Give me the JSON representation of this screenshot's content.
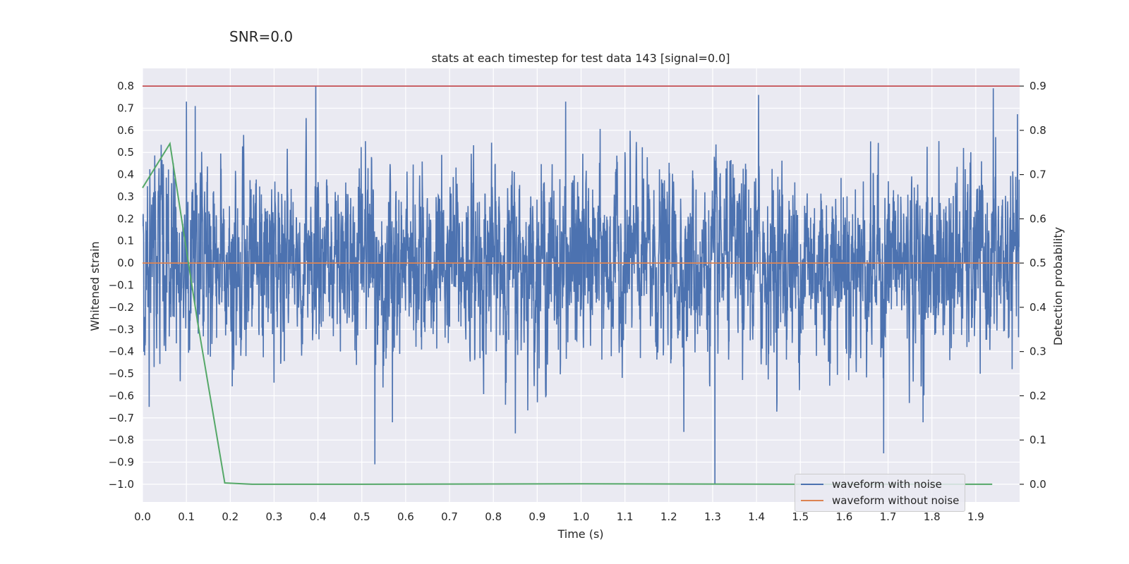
{
  "suptitle": "SNR=0.0",
  "colors": {
    "background": "#eaeaf2",
    "grid": "#ffffff",
    "noisy": "#4c72b0",
    "clean": "#dd8452",
    "probability": "#55a868",
    "threshold": "#c44e52"
  },
  "legend": {
    "position": "lower right",
    "items": [
      {
        "label": "waveform with noise",
        "color": "#4c72b0"
      },
      {
        "label": "waveform without noise",
        "color": "#dd8452"
      }
    ]
  },
  "chart_data": {
    "type": "line",
    "title": "stats at each timestep for test data 143 [signal=0.0]",
    "xlabel": "Time (s)",
    "ylabel": "Whitened strain",
    "y2label": "Detection probability",
    "xlim": [
      0.0,
      2.0
    ],
    "ylim": [
      -1.08,
      0.88
    ],
    "y2lim": [
      -0.04,
      0.94
    ],
    "xticks": [
      "0.0",
      "0.1",
      "0.2",
      "0.3",
      "0.4",
      "0.5",
      "0.6",
      "0.7",
      "0.8",
      "0.9",
      "1.0",
      "1.1",
      "1.2",
      "1.3",
      "1.4",
      "1.5",
      "1.6",
      "1.7",
      "1.8",
      "1.9"
    ],
    "yticks": [
      "0.8",
      "0.7",
      "0.6",
      "0.5",
      "0.4",
      "0.3",
      "0.2",
      "0.1",
      "0.0",
      "−0.1",
      "−0.2",
      "−0.3",
      "−0.4",
      "−0.5",
      "−0.6",
      "−0.7",
      "−0.8",
      "−0.9",
      "−1.0"
    ],
    "y2ticks": [
      "0.9",
      "0.8",
      "0.7",
      "0.6",
      "0.5",
      "0.4",
      "0.3",
      "0.2",
      "0.1",
      "0.0"
    ],
    "grid": true,
    "series": [
      {
        "name": "waveform with noise",
        "axis": "left",
        "sample_rate_hz": 2048,
        "values_note_free": true,
        "approx_std": 0.2,
        "spikes": [
          [
            0.1,
            0.73
          ],
          [
            0.12,
            0.71
          ],
          [
            0.395,
            0.8
          ],
          [
            0.53,
            -0.91
          ],
          [
            0.57,
            -0.72
          ],
          [
            0.85,
            -0.77
          ],
          [
            1.305,
            -1.0
          ],
          [
            1.405,
            0.76
          ],
          [
            1.69,
            -0.86
          ],
          [
            1.94,
            0.79
          ],
          [
            0.015,
            -0.65
          ],
          [
            0.965,
            0.73
          ],
          [
            1.78,
            -0.72
          ]
        ]
      },
      {
        "name": "waveform without noise",
        "axis": "left",
        "x": [
          0.0,
          2.0
        ],
        "y": [
          0.0,
          0.0
        ]
      },
      {
        "axis": "right",
        "x": [
          0.0,
          0.0625,
          0.125,
          0.1875,
          0.25,
          0.5,
          1.0,
          1.5,
          1.9375
        ],
        "y": [
          0.67,
          0.77,
          0.37,
          0.003,
          0.0,
          0.0,
          0.001,
          0.0,
          0.0
        ]
      },
      {
        "axis": "right",
        "x": [
          0.0,
          2.0
        ],
        "y": [
          0.9,
          0.9
        ]
      }
    ]
  }
}
